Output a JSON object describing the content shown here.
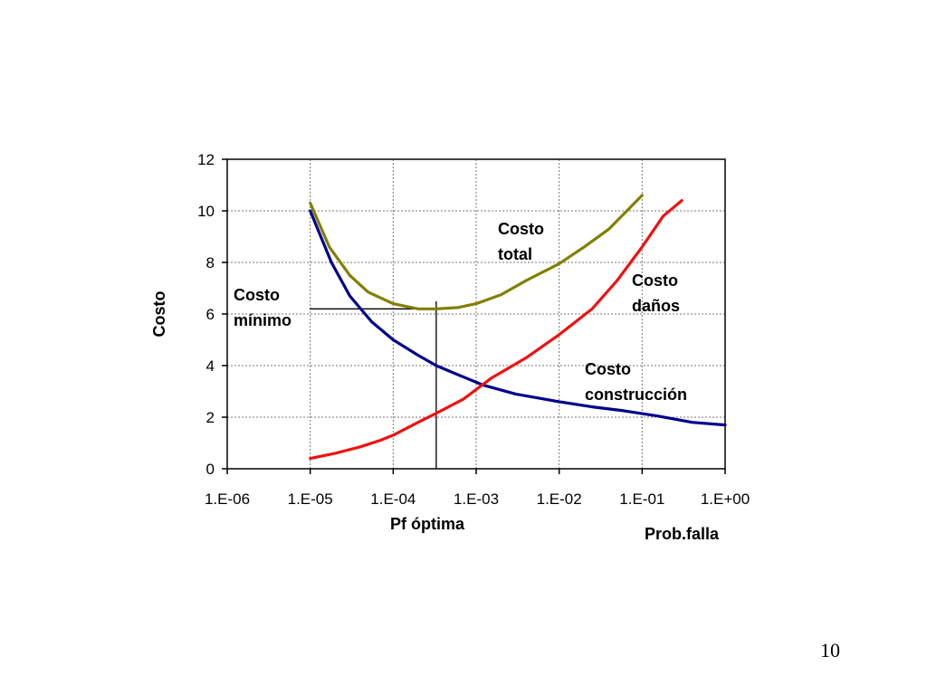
{
  "page": {
    "number": "10"
  },
  "chart_data": {
    "type": "line",
    "xscale": "log",
    "xlim": [
      1e-06,
      1
    ],
    "ylim": [
      0,
      12
    ],
    "ylabel": "Costo",
    "xlabel": "Prob.falla",
    "x_marker_label": "Pf óptima",
    "x_ticks": [
      {
        "value": 1e-06,
        "label": "1.E-06"
      },
      {
        "value": 1e-05,
        "label": "1.E-05"
      },
      {
        "value": 0.0001,
        "label": "1.E-04"
      },
      {
        "value": 0.001,
        "label": "1.E-03"
      },
      {
        "value": 0.01,
        "label": "1.E-02"
      },
      {
        "value": 0.1,
        "label": "1.E-01"
      },
      {
        "value": 1,
        "label": "1.E+00"
      }
    ],
    "y_ticks": [
      0,
      2,
      4,
      6,
      8,
      10,
      12
    ],
    "grid": {
      "horizontal": true,
      "vertical": true,
      "style": "dotted"
    },
    "optimum": {
      "x": 0.00033,
      "y": 6.2
    },
    "series": [
      {
        "name": "Costo construcción",
        "color": "#00008b",
        "points": [
          [
            1e-05,
            10.0
          ],
          [
            1.8e-05,
            8.0
          ],
          [
            3e-05,
            6.7
          ],
          [
            5.5e-05,
            5.7
          ],
          [
            0.0001,
            5.0
          ],
          [
            0.0002,
            4.4
          ],
          [
            0.00033,
            4.0
          ],
          [
            0.0006,
            3.65
          ],
          [
            0.0012,
            3.25
          ],
          [
            0.003,
            2.9
          ],
          [
            0.01,
            2.6
          ],
          [
            0.025,
            2.4
          ],
          [
            0.06,
            2.25
          ],
          [
            0.15,
            2.05
          ],
          [
            0.4,
            1.8
          ],
          [
            1,
            1.7
          ]
        ]
      },
      {
        "name": "Costo daños",
        "color": "#ee1111",
        "points": [
          [
            1e-05,
            0.4
          ],
          [
            2e-05,
            0.6
          ],
          [
            4e-05,
            0.85
          ],
          [
            7e-05,
            1.1
          ],
          [
            0.0001,
            1.3
          ],
          [
            0.0002,
            1.8
          ],
          [
            0.00033,
            2.15
          ],
          [
            0.0007,
            2.7
          ],
          [
            0.0015,
            3.5
          ],
          [
            0.004,
            4.3
          ],
          [
            0.01,
            5.2
          ],
          [
            0.025,
            6.2
          ],
          [
            0.05,
            7.3
          ],
          [
            0.1,
            8.6
          ],
          [
            0.18,
            9.8
          ],
          [
            0.3,
            10.4
          ]
        ]
      },
      {
        "name": "Costo total",
        "color": "#808000",
        "points": [
          [
            1e-05,
            10.3
          ],
          [
            1.7e-05,
            8.6
          ],
          [
            3e-05,
            7.5
          ],
          [
            5e-05,
            6.85
          ],
          [
            0.0001,
            6.4
          ],
          [
            0.0002,
            6.2
          ],
          [
            0.00033,
            6.2
          ],
          [
            0.0006,
            6.25
          ],
          [
            0.001,
            6.4
          ],
          [
            0.002,
            6.75
          ],
          [
            0.004,
            7.3
          ],
          [
            0.01,
            7.95
          ],
          [
            0.02,
            8.6
          ],
          [
            0.04,
            9.3
          ],
          [
            0.1,
            10.6
          ]
        ]
      }
    ],
    "annotations": [
      {
        "name": "total",
        "lines": [
          "Costo",
          "total"
        ]
      },
      {
        "name": "danos",
        "lines": [
          "Costo",
          "daños"
        ]
      },
      {
        "name": "construccion",
        "lines": [
          "Costo",
          "construcción"
        ]
      },
      {
        "name": "minimo",
        "lines": [
          "Costo",
          "mínimo"
        ]
      }
    ]
  }
}
